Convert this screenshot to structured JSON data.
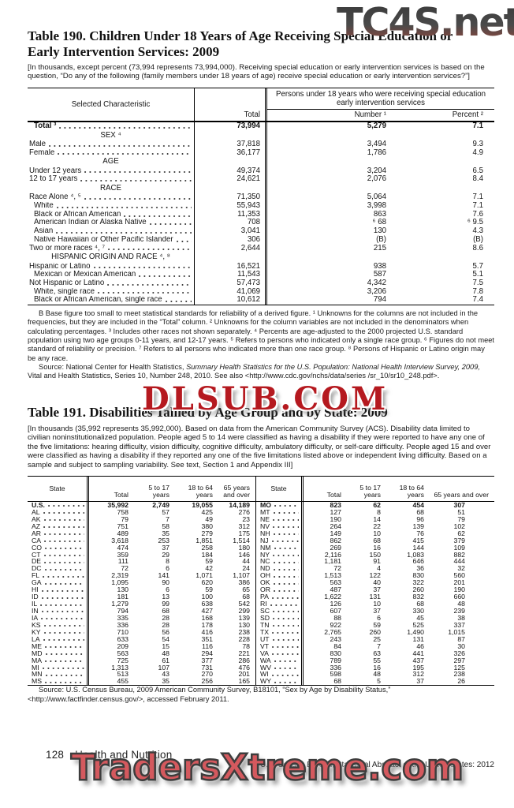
{
  "watermarks": {
    "top": "TC4S.net",
    "middle": "DLSUB.COM",
    "bottom": "TradersXtreme.com"
  },
  "table190": {
    "title": "Table 190. Children Under 18 Years of Age Receiving Special Education or Early Intervention Services: 2009",
    "note": "[In thousands, except percent (73,994 represents 73,994,000). Receiving special education or early intervention services is based on the question, “Do any of the following (family members under 18 years of age) receive special education or early intervention services?”]",
    "header": {
      "characteristic": "Selected Characteristic",
      "total": "Total",
      "group": "Persons under 18 years who were receiving special education early intervention services",
      "number": "Number ¹",
      "percent": "Percent ²"
    },
    "rows": [
      {
        "type": "data",
        "bold": true,
        "indent": 1,
        "label": "Total ³",
        "total": "73,994",
        "number": "5,279",
        "percent": "7.1"
      },
      {
        "type": "section",
        "label": "SEX ⁴"
      },
      {
        "type": "data",
        "indent": 0,
        "label": "Male",
        "total": "37,818",
        "number": "3,494",
        "percent": "9.3"
      },
      {
        "type": "data",
        "indent": 0,
        "label": "Female",
        "total": "36,177",
        "number": "1,786",
        "percent": "4.9"
      },
      {
        "type": "section",
        "label": "AGE"
      },
      {
        "type": "data",
        "indent": 0,
        "label": "Under 12 years",
        "total": "49,374",
        "number": "3,204",
        "percent": "6.5"
      },
      {
        "type": "data",
        "indent": 0,
        "label": "12 to 17 years",
        "total": "24,621",
        "number": "2,076",
        "percent": "8.4"
      },
      {
        "type": "section",
        "label": "RACE"
      },
      {
        "type": "data",
        "indent": 0,
        "label": "Race Alone ⁴, ⁵",
        "total": "71,350",
        "number": "5,064",
        "percent": "7.1"
      },
      {
        "type": "data",
        "indent": 1,
        "label": "White",
        "total": "55,943",
        "number": "3,998",
        "percent": "7.1"
      },
      {
        "type": "data",
        "indent": 1,
        "label": "Black or African American",
        "total": "11,353",
        "number": "863",
        "percent": "7.6"
      },
      {
        "type": "data",
        "indent": 1,
        "label": "American Indian or Alaska Native",
        "total": "708",
        "number": "⁶ 68",
        "percent": "⁶ 9.5"
      },
      {
        "type": "data",
        "indent": 1,
        "label": "Asian",
        "total": "3,041",
        "number": "130",
        "percent": "4.3"
      },
      {
        "type": "data",
        "indent": 1,
        "label": "Native Hawaiian or Other Pacific Islander",
        "total": "306",
        "number": "(B)",
        "percent": "(B)"
      },
      {
        "type": "data",
        "indent": 0,
        "label": "Two or more races ⁴, ⁷",
        "total": "2,644",
        "number": "215",
        "percent": "8.6"
      },
      {
        "type": "section",
        "label": "HISPANIC ORIGIN AND RACE ⁴, ⁸"
      },
      {
        "type": "data",
        "indent": 0,
        "label": "Hispanic or Latino",
        "total": "16,521",
        "number": "938",
        "percent": "5.7"
      },
      {
        "type": "data",
        "indent": 1,
        "label": "Mexican or Mexican American",
        "total": "11,543",
        "number": "587",
        "percent": "5.1"
      },
      {
        "type": "data",
        "indent": 0,
        "label": "Not Hispanic or Latino",
        "total": "57,473",
        "number": "4,342",
        "percent": "7.5"
      },
      {
        "type": "data",
        "indent": 1,
        "label": "White, single race",
        "total": "41,069",
        "number": "3,206",
        "percent": "7.8"
      },
      {
        "type": "data",
        "indent": 1,
        "label": "Black or African American, single race",
        "total": "10,612",
        "number": "794",
        "percent": "7.4"
      }
    ],
    "footnote": "B Base figure too small to meet statistical standards for reliability of a derived figure. ¹ Unknowns for the columns are not included in the frequencies, but they are included in the “Total” column. ² Unknowns for the column variables are not included in the denominators when calculating percentages. ³ Includes other races not shown separately. ⁴ Percents are age-adjusted to the 2000 projected U.S. standard population using two age groups 0-11 years, and 12-17 years. ⁵ Refers to persons who indicated only a single race group. ⁶ Figures do not meet standard of reliability or precision. ⁷ Refers to all persons who indicated more than one race group. ⁸ Persons of Hispanic or Latino origin may be any race.",
    "source_prefix": "Source: National Center for Health Statistics, ",
    "source_italic": "Summary Health Statistics for the U.S. Population: National Health Interview Survey, 2009,",
    "source_suffix": " Vital and Health Statistics, Series 10, Number 248, 2010. See also <http://www.cdc.gov/nchs/data/series /sr_10/sr10_248.pdf>."
  },
  "table191": {
    "title": "Table 191. Disabilities Tallied by Age Group and by State: 2009",
    "note": "[In thousands (35,992 represents 35,992,000). Based on data from the American Community Survey (ACS). Disability data limited to civilian noninstitutionalized population. People aged 5 to 14 were classified as having a disability if they were reported to have any one of the five limitations: hearing difficulty, vision difficulty, cognitive difficulty, ambulatory difficulty, or self-care difficulty. People aged 15 and over were classified as having a disability if they reported any one of the five limitations listed above or independent living difficulty. Based on a sample and subject to sampling variability. See text, Section 1 and Appendix III]",
    "columns": {
      "state": "State",
      "total": "Total",
      "y5_17": "5 to 17 years",
      "y18_64": "18 to 64 years",
      "y65": "65 years and over"
    },
    "left_rows": [
      [
        "U.S.",
        "35,992",
        "2,749",
        "19,055",
        "14,189"
      ],
      [
        "AL",
        "758",
        "57",
        "425",
        "276"
      ],
      [
        "AK",
        "79",
        "7",
        "49",
        "23"
      ],
      [
        "AZ",
        "751",
        "58",
        "380",
        "312"
      ],
      [
        "AR",
        "489",
        "35",
        "279",
        "175"
      ],
      [
        "CA",
        "3,618",
        "253",
        "1,851",
        "1,514"
      ],
      [
        "CO",
        "474",
        "37",
        "258",
        "180"
      ],
      [
        "CT",
        "359",
        "29",
        "184",
        "146"
      ],
      [
        "DE",
        "111",
        "8",
        "59",
        "44"
      ],
      [
        "DC",
        "72",
        "6",
        "42",
        "24"
      ],
      [
        "FL",
        "2,319",
        "141",
        "1,071",
        "1,107"
      ],
      [
        "GA",
        "1,095",
        "90",
        "620",
        "386"
      ],
      [
        "HI",
        "130",
        "6",
        "59",
        "65"
      ],
      [
        "ID",
        "181",
        "13",
        "100",
        "68"
      ],
      [
        "IL",
        "1,279",
        "99",
        "638",
        "542"
      ],
      [
        "IN",
        "794",
        "68",
        "427",
        "299"
      ],
      [
        "IA",
        "335",
        "28",
        "168",
        "139"
      ],
      [
        "KS",
        "336",
        "28",
        "178",
        "130"
      ],
      [
        "KY",
        "710",
        "56",
        "416",
        "238"
      ],
      [
        "LA",
        "633",
        "54",
        "351",
        "228"
      ],
      [
        "ME",
        "209",
        "15",
        "116",
        "78"
      ],
      [
        "MD",
        "563",
        "48",
        "294",
        "221"
      ],
      [
        "MA",
        "725",
        "61",
        "377",
        "286"
      ],
      [
        "MI",
        "1,313",
        "107",
        "731",
        "476"
      ],
      [
        "MN",
        "513",
        "43",
        "270",
        "201"
      ],
      [
        "MS",
        "455",
        "35",
        "256",
        "165"
      ]
    ],
    "right_rows": [
      [
        "MO",
        "823",
        "62",
        "454",
        "307"
      ],
      [
        "MT",
        "127",
        "8",
        "68",
        "51"
      ],
      [
        "NE",
        "190",
        "14",
        "96",
        "79"
      ],
      [
        "NV",
        "264",
        "22",
        "139",
        "102"
      ],
      [
        "NH",
        "149",
        "10",
        "76",
        "62"
      ],
      [
        "NJ",
        "862",
        "68",
        "415",
        "379"
      ],
      [
        "NM",
        "269",
        "16",
        "144",
        "109"
      ],
      [
        "NY",
        "2,116",
        "150",
        "1,083",
        "882"
      ],
      [
        "NC",
        "1,181",
        "91",
        "646",
        "444"
      ],
      [
        "ND",
        "72",
        "4",
        "36",
        "32"
      ],
      [
        "OH",
        "1,513",
        "122",
        "830",
        "560"
      ],
      [
        "OK",
        "563",
        "40",
        "322",
        "201"
      ],
      [
        "OR",
        "487",
        "37",
        "260",
        "190"
      ],
      [
        "PA",
        "1,622",
        "131",
        "832",
        "660"
      ],
      [
        "RI",
        "126",
        "10",
        "68",
        "48"
      ],
      [
        "SC",
        "607",
        "37",
        "330",
        "239"
      ],
      [
        "SD",
        "88",
        "6",
        "45",
        "38"
      ],
      [
        "TN",
        "922",
        "59",
        "525",
        "337"
      ],
      [
        "TX",
        "2,765",
        "260",
        "1,490",
        "1,015"
      ],
      [
        "UT",
        "243",
        "25",
        "131",
        "87"
      ],
      [
        "VT",
        "84",
        "7",
        "46",
        "30"
      ],
      [
        "VA",
        "830",
        "63",
        "441",
        "326"
      ],
      [
        "WA",
        "789",
        "55",
        "437",
        "297"
      ],
      [
        "WV",
        "336",
        "16",
        "195",
        "125"
      ],
      [
        "WI",
        "598",
        "48",
        "312",
        "238"
      ],
      [
        "WY",
        "68",
        "5",
        "37",
        "26"
      ]
    ],
    "source": "Source: U.S. Census Bureau, 2009 American Community Survey, B18101, “Sex by Age by Disability Status,” <http://www.factfinder.census.gov/>, accessed February 2011."
  },
  "footer": {
    "page_number": "128",
    "section": "Health and Nutrition",
    "credit": "U.S. Census Bureau, Statistical Abstract of the United States: 2012"
  }
}
